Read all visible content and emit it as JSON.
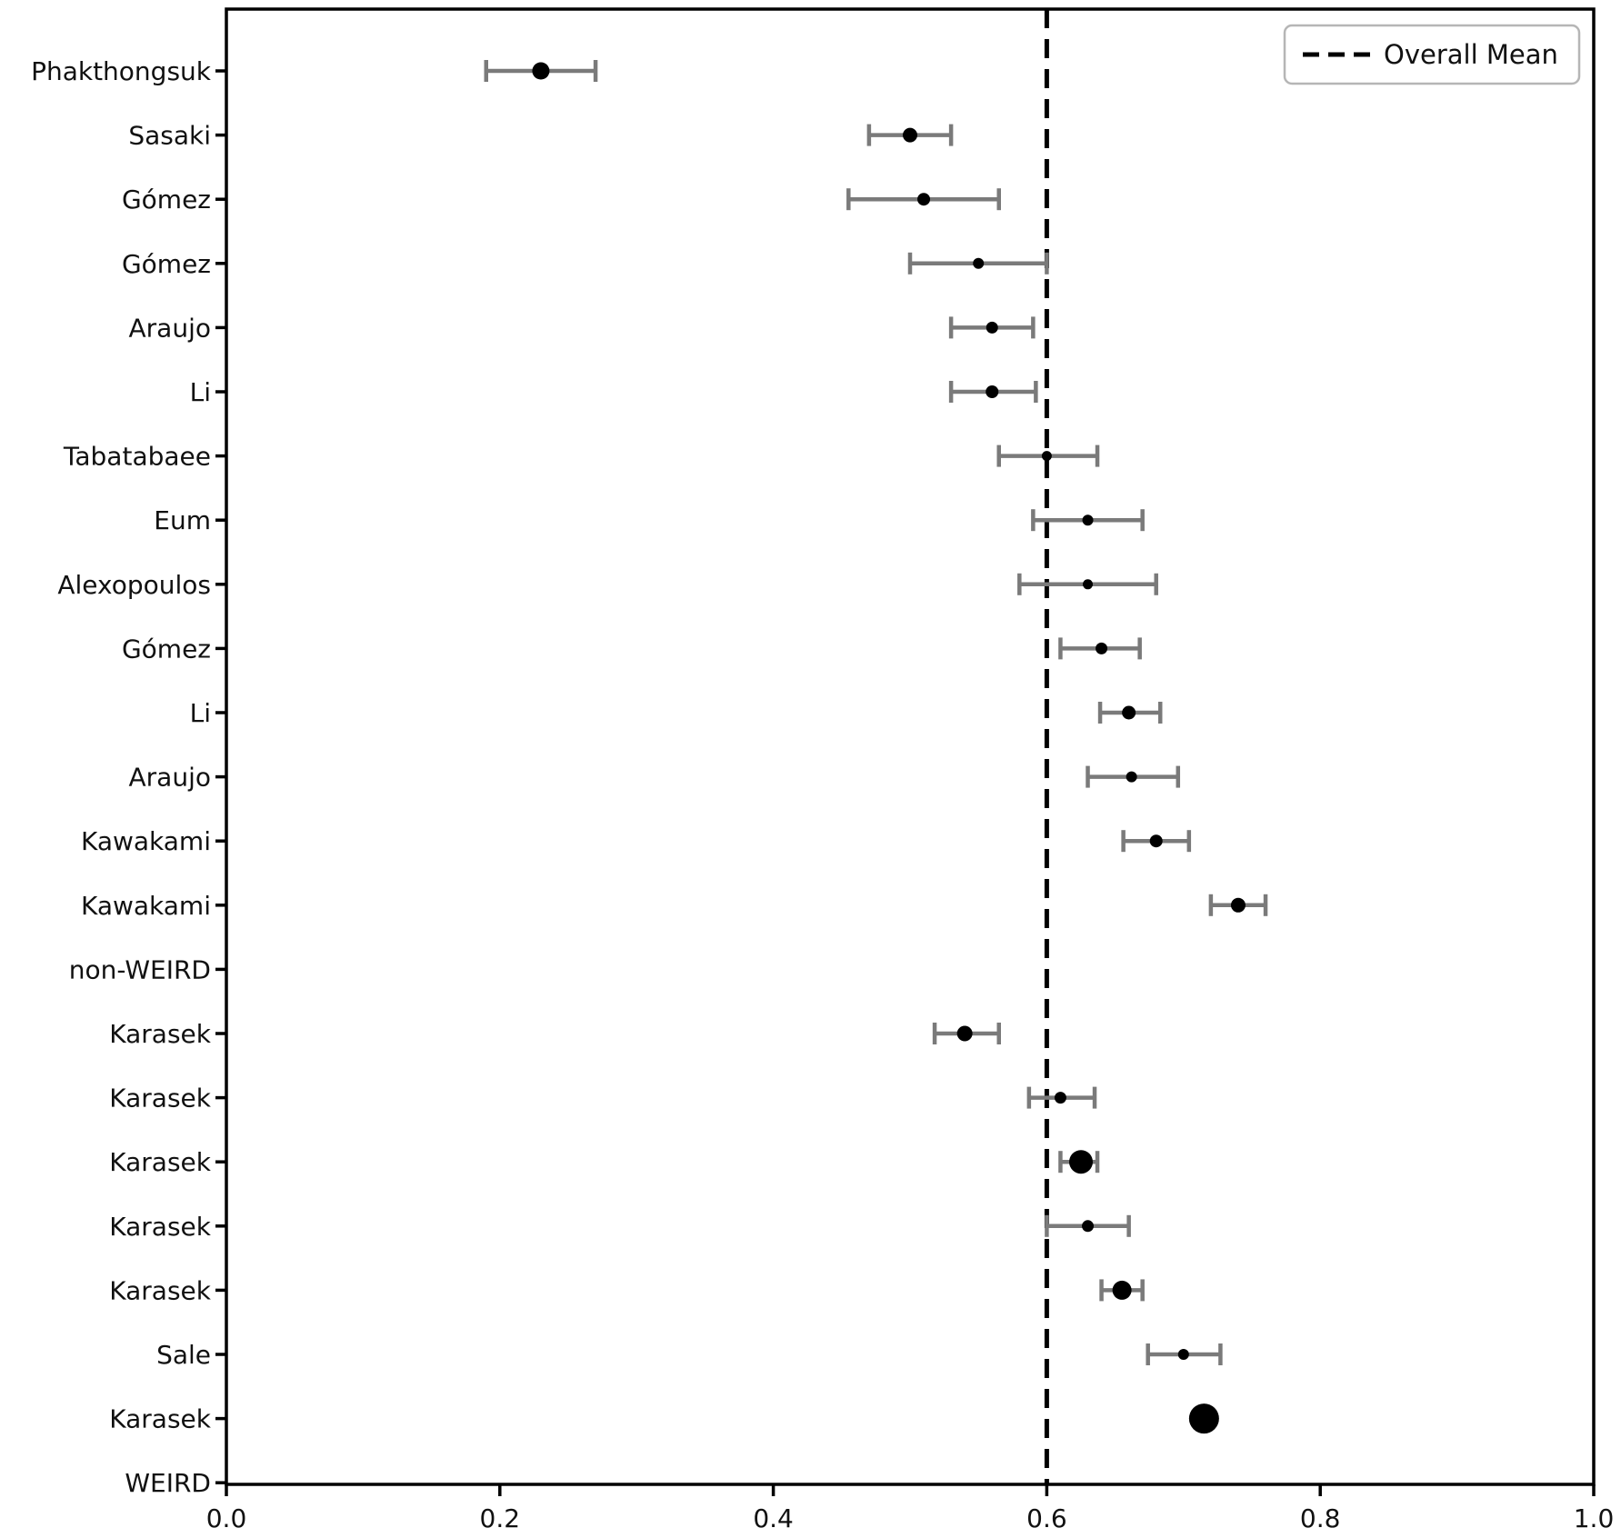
{
  "chart_data": {
    "type": "scatter",
    "subtype": "forest-plot",
    "title": "",
    "xlabel": "",
    "ylabel": "",
    "xlim": [
      0.0,
      1.0
    ],
    "x_ticks": [
      0.0,
      0.2,
      0.4,
      0.6,
      0.8,
      1.0
    ],
    "x_tick_labels": [
      "0.0",
      "0.2",
      "0.4",
      "0.6",
      "0.8",
      "1.0"
    ],
    "grid": false,
    "overall_mean": 0.6,
    "legend": {
      "label": "Overall Mean",
      "position": "upper right",
      "line_style": "dashed"
    },
    "colors": {
      "marker": "#000000",
      "error_bar": "#7a7a7a",
      "mean_line": "#000000",
      "axis": "#000000",
      "background": "#ffffff"
    },
    "rows": [
      {
        "label": "Phakthongsuk",
        "value": 0.23,
        "ci_low": 0.19,
        "ci_high": 0.27,
        "marker_size": 19
      },
      {
        "label": "Sasaki",
        "value": 0.5,
        "ci_low": 0.47,
        "ci_high": 0.53,
        "marker_size": 16
      },
      {
        "label": "Gómez",
        "value": 0.51,
        "ci_low": 0.455,
        "ci_high": 0.565,
        "marker_size": 14
      },
      {
        "label": "Gómez",
        "value": 0.55,
        "ci_low": 0.5,
        "ci_high": 0.6,
        "marker_size": 12
      },
      {
        "label": "Araujo",
        "value": 0.56,
        "ci_low": 0.53,
        "ci_high": 0.59,
        "marker_size": 13
      },
      {
        "label": "Li",
        "value": 0.56,
        "ci_low": 0.53,
        "ci_high": 0.592,
        "marker_size": 14
      },
      {
        "label": "Tabatabaee",
        "value": 0.6,
        "ci_low": 0.565,
        "ci_high": 0.637,
        "marker_size": 11
      },
      {
        "label": "Eum",
        "value": 0.63,
        "ci_low": 0.59,
        "ci_high": 0.67,
        "marker_size": 12
      },
      {
        "label": "Alexopoulos",
        "value": 0.63,
        "ci_low": 0.58,
        "ci_high": 0.68,
        "marker_size": 11
      },
      {
        "label": "Gómez",
        "value": 0.64,
        "ci_low": 0.61,
        "ci_high": 0.668,
        "marker_size": 13
      },
      {
        "label": "Li",
        "value": 0.66,
        "ci_low": 0.639,
        "ci_high": 0.683,
        "marker_size": 15
      },
      {
        "label": "Araujo",
        "value": 0.662,
        "ci_low": 0.63,
        "ci_high": 0.696,
        "marker_size": 12
      },
      {
        "label": "Kawakami",
        "value": 0.68,
        "ci_low": 0.656,
        "ci_high": 0.704,
        "marker_size": 14
      },
      {
        "label": "Kawakami",
        "value": 0.74,
        "ci_low": 0.72,
        "ci_high": 0.76,
        "marker_size": 16
      },
      {
        "label": "non-WEIRD",
        "value": null,
        "ci_low": null,
        "ci_high": null,
        "marker_size": null
      },
      {
        "label": "Karasek",
        "value": 0.54,
        "ci_low": 0.518,
        "ci_high": 0.565,
        "marker_size": 17
      },
      {
        "label": "Karasek",
        "value": 0.61,
        "ci_low": 0.587,
        "ci_high": 0.635,
        "marker_size": 13
      },
      {
        "label": "Karasek",
        "value": 0.625,
        "ci_low": 0.61,
        "ci_high": 0.637,
        "marker_size": 26
      },
      {
        "label": "Karasek",
        "value": 0.63,
        "ci_low": 0.6,
        "ci_high": 0.66,
        "marker_size": 13
      },
      {
        "label": "Karasek",
        "value": 0.655,
        "ci_low": 0.64,
        "ci_high": 0.67,
        "marker_size": 21
      },
      {
        "label": "Sale",
        "value": 0.7,
        "ci_low": 0.674,
        "ci_high": 0.727,
        "marker_size": 12
      },
      {
        "label": "Karasek",
        "value": 0.715,
        "ci_low": null,
        "ci_high": null,
        "marker_size": 33
      },
      {
        "label": "WEIRD",
        "value": null,
        "ci_low": null,
        "ci_high": null,
        "marker_size": null
      }
    ]
  }
}
